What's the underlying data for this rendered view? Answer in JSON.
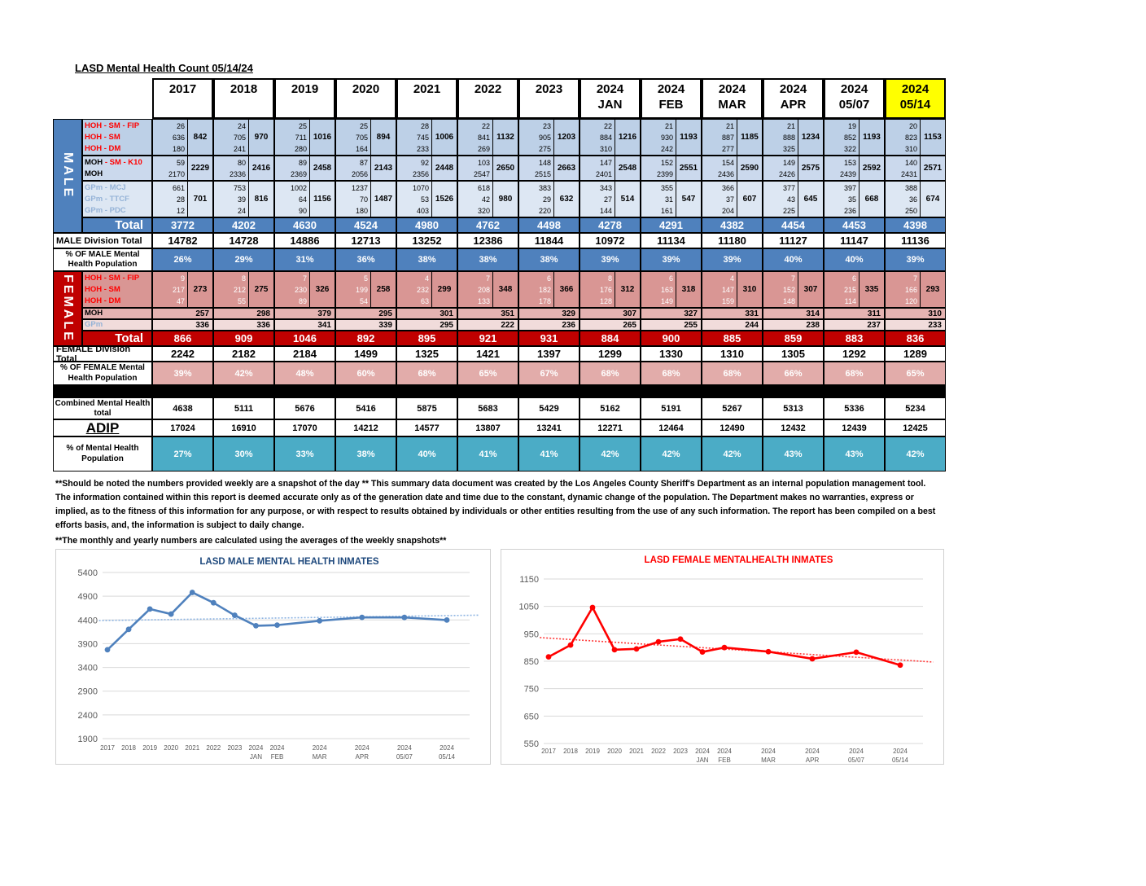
{
  "title": "LASD Mental Health Count 05/14/24",
  "columns": [
    {
      "l1": "2017",
      "l2": ""
    },
    {
      "l1": "2018",
      "l2": ""
    },
    {
      "l1": "2019",
      "l2": ""
    },
    {
      "l1": "2020",
      "l2": ""
    },
    {
      "l1": "2021",
      "l2": ""
    },
    {
      "l1": "2022",
      "l2": ""
    },
    {
      "l1": "2023",
      "l2": ""
    },
    {
      "l1": "2024",
      "l2": "JAN"
    },
    {
      "l1": "2024",
      "l2": "FEB"
    },
    {
      "l1": "2024",
      "l2": "MAR"
    },
    {
      "l1": "2024",
      "l2": "APR"
    },
    {
      "l1": "2024",
      "l2": "05/07"
    },
    {
      "l1": "2024",
      "l2": "05/14",
      "highlight": true
    }
  ],
  "male": {
    "band": "MALE",
    "groups": [
      {
        "bg": "hoh",
        "rows": [
          {
            "parts": [
              {
                "t": "HOH - SM - FIP",
                "c": "red"
              }
            ],
            "values": [
              26,
              24,
              25,
              25,
              28,
              22,
              23,
              22,
              21,
              21,
              21,
              19,
              20
            ]
          },
          {
            "parts": [
              {
                "t": "HOH - SM",
                "c": "red"
              }
            ],
            "values": [
              636,
              705,
              711,
              705,
              745,
              841,
              905,
              884,
              930,
              887,
              888,
              852,
              823
            ]
          },
          {
            "parts": [
              {
                "t": "HOH - DM",
                "c": "red"
              }
            ],
            "values": [
              180,
              241,
              280,
              164,
              233,
              269,
              275,
              310,
              242,
              277,
              325,
              322,
              310
            ]
          }
        ],
        "subtotals": [
          842,
          970,
          1016,
          894,
          1006,
          1132,
          1203,
          1216,
          1193,
          1185,
          1234,
          1193,
          1153
        ]
      },
      {
        "bg": "moh",
        "rows": [
          {
            "parts": [
              {
                "t": "MOH ",
                "c": "black"
              },
              {
                "t": "- SM - K10",
                "c": "red"
              }
            ],
            "values": [
              59,
              80,
              89,
              87,
              92,
              103,
              148,
              147,
              152,
              154,
              149,
              153,
              140
            ]
          },
          {
            "parts": [
              {
                "t": "MOH",
                "c": "black"
              }
            ],
            "values": [
              2170,
              2336,
              2369,
              2056,
              2356,
              2547,
              2515,
              2401,
              2399,
              2436,
              2426,
              2439,
              2431
            ]
          }
        ],
        "subtotals": [
          2229,
          2416,
          2458,
          2143,
          2448,
          2650,
          2663,
          2548,
          2551,
          2590,
          2575,
          2592,
          2571
        ]
      },
      {
        "bg": "gpm",
        "rows": [
          {
            "parts": [
              {
                "t": "GPm - MCJ",
                "c": "blue"
              }
            ],
            "values": [
              661,
              753,
              1002,
              1237,
              1070,
              618,
              383,
              343,
              355,
              366,
              377,
              397,
              388
            ]
          },
          {
            "parts": [
              {
                "t": "GPm - TTCF",
                "c": "blue"
              }
            ],
            "values": [
              28,
              39,
              64,
              70,
              53,
              42,
              29,
              27,
              31,
              37,
              43,
              35,
              36
            ]
          },
          {
            "parts": [
              {
                "t": "GPm - PDC",
                "c": "blue"
              }
            ],
            "values": [
              12,
              24,
              90,
              180,
              403,
              320,
              220,
              144,
              161,
              204,
              225,
              236,
              250
            ]
          }
        ],
        "subtotals": [
          701,
          816,
          1156,
          1487,
          1526,
          980,
          632,
          514,
          547,
          607,
          645,
          668,
          674
        ]
      }
    ],
    "total_label": "Total",
    "totals": [
      3772,
      4202,
      4630,
      4524,
      4980,
      4762,
      4498,
      4278,
      4291,
      4382,
      4454,
      4453,
      4398
    ],
    "division_label": "MALE Division Total",
    "division": [
      14782,
      14728,
      14886,
      12713,
      13252,
      12386,
      11844,
      10972,
      11134,
      11180,
      11127,
      11147,
      11136
    ],
    "pct_label": "% OF MALE Mental Health Population",
    "pct": [
      "26%",
      "29%",
      "31%",
      "36%",
      "38%",
      "38%",
      "38%",
      "39%",
      "39%",
      "39%",
      "40%",
      "40%",
      "39%"
    ]
  },
  "female": {
    "band": "FEMALE",
    "hoh": {
      "rows": [
        {
          "parts": [
            {
              "t": "HOH - SM - FIP",
              "c": "red"
            }
          ],
          "values": [
            9,
            8,
            7,
            5,
            4,
            7,
            6,
            8,
            6,
            4,
            7,
            6,
            7
          ]
        },
        {
          "parts": [
            {
              "t": "HOH - SM",
              "c": "red"
            }
          ],
          "values": [
            217,
            212,
            230,
            199,
            232,
            208,
            182,
            176,
            163,
            147,
            152,
            215,
            166
          ]
        },
        {
          "parts": [
            {
              "t": "HOH - DM",
              "c": "red"
            }
          ],
          "values": [
            47,
            55,
            89,
            54,
            63,
            133,
            178,
            128,
            149,
            159,
            148,
            114,
            120
          ]
        }
      ],
      "subtotals": [
        273,
        275,
        326,
        258,
        299,
        348,
        366,
        312,
        318,
        310,
        307,
        335,
        293
      ]
    },
    "moh": {
      "parts": [
        {
          "t": "MOH",
          "c": "black"
        }
      ],
      "values": [
        257,
        298,
        379,
        295,
        301,
        351,
        329,
        307,
        327,
        331,
        314,
        311,
        310
      ]
    },
    "gpm": {
      "parts": [
        {
          "t": "GPm",
          "c": "blue"
        }
      ],
      "values": [
        336,
        336,
        341,
        339,
        295,
        222,
        236,
        265,
        255,
        244,
        238,
        237,
        233
      ]
    },
    "total_label": "Total",
    "totals": [
      866,
      909,
      1046,
      892,
      895,
      921,
      931,
      884,
      900,
      885,
      859,
      883,
      836
    ],
    "division_label": "FEMALE Division Total",
    "division": [
      2242,
      2182,
      2184,
      1499,
      1325,
      1421,
      1397,
      1299,
      1330,
      1310,
      1305,
      1292,
      1289
    ],
    "pct_label": "% OF FEMALE Mental Health Population",
    "pct": [
      "39%",
      "42%",
      "48%",
      "60%",
      "68%",
      "65%",
      "67%",
      "68%",
      "68%",
      "68%",
      "66%",
      "68%",
      "65%"
    ]
  },
  "combined": {
    "combined_label": "Combined Mental Health total",
    "combined": [
      4638,
      5111,
      5676,
      5416,
      5875,
      5683,
      5429,
      5162,
      5191,
      5267,
      5313,
      5336,
      5234
    ],
    "adip_label": "ADIP",
    "adip": [
      17024,
      16910,
      17070,
      14212,
      14577,
      13807,
      13241,
      12271,
      12464,
      12490,
      12432,
      12439,
      12425
    ],
    "pct_label": "% of Mental Health Population",
    "pct": [
      "27%",
      "30%",
      "33%",
      "38%",
      "40%",
      "41%",
      "41%",
      "42%",
      "42%",
      "42%",
      "43%",
      "43%",
      "42%"
    ]
  },
  "notes": [
    "**Should be noted the numbers provided weekly are a snapshot of the day ** This summary data document was created by the Los Angeles County Sheriff's Department as an internal population management tool.  The information contained within this report is deemed accurate only as of the generation date and time due to the constant, dynamic change of the population.  The Department makes no warranties, express or implied, as to the fitness of this information for any purpose, or with respect to results obtained by individuals or other entities resulting from the use of any such information.  The report has been compiled on a best efforts basis, and, the information is subject to daily change.",
    "**The monthly and yearly numbers are calculated using the averages of the weekly snapshots**"
  ],
  "colors": {
    "male_accent": "#4F81BD",
    "male_hoh_bg": "#BDD0E7",
    "male_moh_bg": "#CBD9ED",
    "male_gpm_bg": "#DDE7F3",
    "female_accent": "#C00000",
    "female_hoh_bg": "#D99694",
    "female_moh_bg": "#E5B3B1",
    "female_gpm_bg": "#F1DCDB",
    "female_pct_bg": "#E2ACAA",
    "teal": "#4BACC6",
    "highlight_yellow": "#FFFF00",
    "label_red": "#FF0000",
    "label_blue": "#95B3D7"
  },
  "chart_data": [
    {
      "type": "line",
      "title": "LASD MALE MENTAL HEALTH INMATES",
      "title_color": "#1F497D",
      "categories": [
        [
          "2017"
        ],
        [
          "2018"
        ],
        [
          "2019"
        ],
        [
          "2020"
        ],
        [
          "2021"
        ],
        [
          "2022"
        ],
        [
          "2023"
        ],
        [
          "2024",
          "JAN"
        ],
        [
          "2024",
          "FEB"
        ],
        [
          "2024",
          "MAR"
        ],
        [
          "2024",
          "APR"
        ],
        [
          "2024",
          "05/07"
        ],
        [
          "2024",
          "05/14"
        ]
      ],
      "x": [
        0,
        1,
        2,
        3,
        4,
        5,
        6,
        7,
        8,
        10,
        12,
        14,
        16
      ],
      "values": [
        3772,
        4202,
        4630,
        4524,
        4980,
        4762,
        4498,
        4278,
        4291,
        4382,
        4454,
        4453,
        4398
      ],
      "ylim": [
        1900,
        5400
      ],
      "ytick_step": 500,
      "grid": true,
      "legend": "none",
      "line_color": "#4F81BD",
      "marker": "circle",
      "trendline": "linear-dotted",
      "trendline_color": "#8DB4E2"
    },
    {
      "type": "line",
      "title": "LASD FEMALE MENTALHEALTH INMATES",
      "title_color": "#FF0000",
      "categories": [
        [
          "2017"
        ],
        [
          "2018"
        ],
        [
          "2019"
        ],
        [
          "2020"
        ],
        [
          "2021"
        ],
        [
          "2022"
        ],
        [
          "2023"
        ],
        [
          "2024",
          "JAN"
        ],
        [
          "2024",
          "FEB"
        ],
        [
          "2024",
          "MAR"
        ],
        [
          "2024",
          "APR"
        ],
        [
          "2024",
          "05/07"
        ],
        [
          "2024",
          "05/14"
        ]
      ],
      "x": [
        0,
        1,
        2,
        3,
        4,
        5,
        6,
        7,
        8,
        10,
        12,
        14,
        16
      ],
      "values": [
        866,
        909,
        1046,
        892,
        895,
        921,
        931,
        884,
        900,
        885,
        859,
        883,
        836
      ],
      "ylim": [
        550,
        1150
      ],
      "ytick_step": 100,
      "grid": true,
      "legend": "none",
      "line_color": "#FF0000",
      "marker": "circle",
      "trendline": "linear-dotted",
      "trendline_color": "#FF3B3B"
    }
  ]
}
